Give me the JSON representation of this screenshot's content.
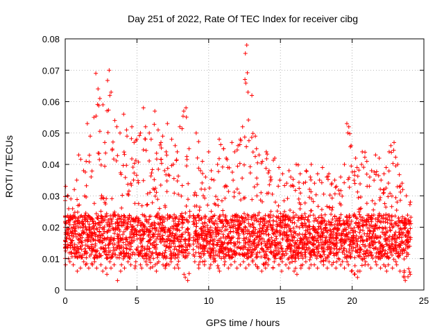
{
  "chart_data": {
    "type": "scatter",
    "title": "Day 251 of 2022, Rate Of TEC Index for receiver cibg",
    "xlabel": "GPS time / hours",
    "ylabel": "ROTI / TECUs",
    "xlim": [
      0,
      25
    ],
    "ylim": [
      0,
      0.08
    ],
    "xticks": [
      "0",
      "5",
      "10",
      "15",
      "20",
      "25"
    ],
    "yticks": [
      "0",
      "0.01",
      "0.02",
      "0.03",
      "0.04",
      "0.05",
      "0.06",
      "0.07",
      "0.08"
    ],
    "grid": true,
    "marker": "+",
    "color": "#ff0000",
    "series": [
      {
        "x": [
          0.0,
          0.2,
          0.4,
          0.6,
          0.8,
          1.0,
          1.2,
          1.4,
          1.6,
          1.8,
          2.0,
          2.2,
          2.4,
          2.6,
          2.8,
          3.0,
          3.2,
          3.4,
          3.6,
          3.8,
          4.0,
          4.2,
          4.4,
          4.6,
          4.8,
          5.0,
          5.2,
          5.4,
          5.6,
          5.8,
          6.0,
          6.2,
          6.4,
          6.6,
          6.8,
          7.0,
          7.2,
          7.4,
          7.6,
          7.8,
          8.0,
          8.2,
          8.4,
          8.6,
          9.0,
          9.2,
          9.4,
          9.6,
          9.8,
          10.0,
          10.2,
          10.4,
          10.6,
          10.8,
          11.0,
          11.2,
          11.4,
          11.6,
          11.8,
          12.0,
          12.2,
          12.4,
          12.6,
          12.8,
          13.0,
          13.2,
          13.4,
          13.6,
          13.8,
          14.0,
          14.2,
          14.4,
          14.6,
          14.8,
          15.0,
          15.2,
          15.4,
          15.6,
          15.8,
          16.0,
          16.2,
          16.4,
          16.6,
          16.8,
          17.0,
          17.2,
          17.4,
          17.6,
          17.8,
          18.0,
          18.2,
          18.4,
          18.6,
          18.8,
          19.0,
          19.2,
          19.4,
          19.6,
          19.8,
          20.0,
          20.2,
          20.4,
          20.6,
          20.8,
          21.0,
          21.2,
          21.4,
          21.6,
          21.8,
          22.0,
          22.2,
          22.4,
          22.6,
          22.8,
          23.0,
          23.2,
          23.4,
          23.6,
          23.8,
          24.0
        ],
        "y_high": [
          0.033,
          0.03,
          0.029,
          0.032,
          0.035,
          0.043,
          0.038,
          0.041,
          0.053,
          0.049,
          0.055,
          0.069,
          0.061,
          0.059,
          0.047,
          0.07,
          0.063,
          0.054,
          0.052,
          0.05,
          0.056,
          0.051,
          0.049,
          0.052,
          0.047,
          0.048,
          0.05,
          0.058,
          0.052,
          0.05,
          0.048,
          0.057,
          0.051,
          0.047,
          0.049,
          0.044,
          0.053,
          0.048,
          0.046,
          0.044,
          0.052,
          0.057,
          0.058,
          0.045,
          0.031,
          0.05,
          0.038,
          0.041,
          0.036,
          0.044,
          0.038,
          0.035,
          0.04,
          0.048,
          0.045,
          0.042,
          0.039,
          0.047,
          0.044,
          0.046,
          0.048,
          0.052,
          0.078,
          0.063,
          0.062,
          0.049,
          0.045,
          0.043,
          0.041,
          0.044,
          0.038,
          0.036,
          0.042,
          0.039,
          0.035,
          0.037,
          0.034,
          0.038,
          0.036,
          0.033,
          0.04,
          0.037,
          0.034,
          0.038,
          0.036,
          0.04,
          0.034,
          0.037,
          0.035,
          0.039,
          0.036,
          0.037,
          0.034,
          0.035,
          0.033,
          0.036,
          0.04,
          0.053,
          0.052,
          0.046,
          0.042,
          0.039,
          0.04,
          0.044,
          0.041,
          0.036,
          0.038,
          0.043,
          0.042,
          0.035,
          0.037,
          0.039,
          0.044,
          0.046,
          0.047,
          0.04,
          0.034,
          0.032,
          0.03,
          0.028
        ],
        "y_low": [
          0.008,
          0.01,
          0.009,
          0.008,
          0.006,
          0.007,
          0.009,
          0.008,
          0.007,
          0.008,
          0.009,
          0.007,
          0.008,
          0.006,
          0.007,
          0.005,
          0.007,
          0.008,
          0.003,
          0.006,
          0.008,
          0.007,
          0.009,
          0.008,
          0.007,
          0.009,
          0.008,
          0.007,
          0.009,
          0.008,
          0.007,
          0.008,
          0.006,
          0.009,
          0.008,
          0.007,
          0.008,
          0.009,
          0.007,
          0.008,
          0.007,
          0.005,
          0.004,
          0.003,
          0.009,
          0.008,
          0.007,
          0.009,
          0.008,
          0.007,
          0.008,
          0.009,
          0.007,
          0.006,
          0.008,
          0.009,
          0.007,
          0.008,
          0.009,
          0.007,
          0.008,
          0.009,
          0.007,
          0.008,
          0.009,
          0.008,
          0.007,
          0.006,
          0.008,
          0.007,
          0.008,
          0.007,
          0.009,
          0.008,
          0.006,
          0.009,
          0.008,
          0.007,
          0.009,
          0.006,
          0.005,
          0.007,
          0.008,
          0.009,
          0.007,
          0.008,
          0.008,
          0.007,
          0.009,
          0.008,
          0.007,
          0.009,
          0.008,
          0.007,
          0.009,
          0.008,
          0.007,
          0.009,
          0.008,
          0.006,
          0.005,
          0.004,
          0.006,
          0.008,
          0.009,
          0.008,
          0.007,
          0.009,
          0.008,
          0.007,
          0.008,
          0.006,
          0.008,
          0.007,
          0.009,
          0.008,
          0.006,
          0.004,
          0.003,
          0.005
        ]
      }
    ]
  }
}
